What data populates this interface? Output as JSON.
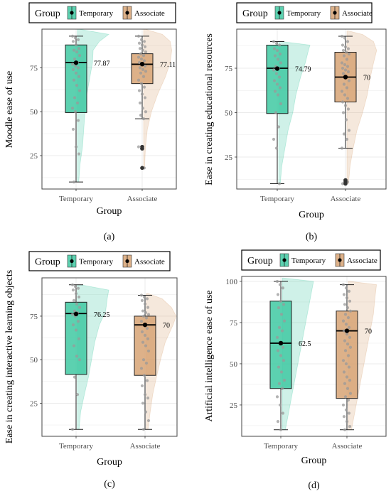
{
  "colors": {
    "temporary": "#40c9a2",
    "associate": "#d7a374",
    "point": "#9a9a9a",
    "mean": "#000000",
    "panel_border": "#444444",
    "grid": "#ebebeb"
  },
  "legend": {
    "title": "Group",
    "items": [
      "Temporary",
      "Associate"
    ]
  },
  "xlabel": "Group",
  "chart_data": [
    {
      "type": "raincloud-boxplot",
      "caption": "(a)",
      "ylabel": "Moodle ease of use",
      "xlabel": "Group",
      "categories": [
        "Temporary",
        "Associate"
      ],
      "ylim": [
        6,
        97
      ],
      "yticks": [
        25,
        50,
        75
      ],
      "ylabels": [
        "25",
        "50",
        "75"
      ],
      "grid": true,
      "legend_position": "top",
      "series": [
        {
          "name": "Temporary",
          "box": {
            "min": 10,
            "q1": 49.5,
            "median": 78,
            "q3": 88,
            "max": 93
          },
          "mean": 77.87,
          "mean_label": "77.87",
          "outliers": [],
          "points": [
            93,
            92,
            91,
            90,
            88,
            86,
            85,
            84,
            82,
            80,
            78,
            77,
            76,
            75,
            74,
            72,
            70,
            68,
            65,
            62,
            58,
            55,
            52,
            50,
            45,
            40,
            30,
            26,
            10
          ],
          "density": [
            [
              10,
              0.04
            ],
            [
              20,
              0.08
            ],
            [
              30,
              0.16
            ],
            [
              40,
              0.2
            ],
            [
              50,
              0.24
            ],
            [
              60,
              0.3
            ],
            [
              70,
              0.4
            ],
            [
              78,
              0.48
            ],
            [
              85,
              0.5
            ],
            [
              90,
              0.7
            ],
            [
              94,
              1.0
            ],
            [
              97,
              0.05
            ]
          ]
        },
        {
          "name": "Associate",
          "box": {
            "min": 46,
            "q1": 66,
            "median": 77,
            "q3": 83,
            "max": 93
          },
          "mean": 77.11,
          "mean_label": "77.11",
          "outliers": [
            30,
            29,
            18
          ],
          "points": [
            93,
            91,
            90,
            89,
            88,
            87,
            86,
            85,
            84,
            83,
            82,
            81,
            80,
            79,
            78,
            77,
            76,
            75,
            74,
            73,
            72,
            70,
            68,
            66,
            64,
            62,
            60,
            58,
            55,
            52,
            50,
            48,
            46,
            30,
            29,
            18
          ],
          "density": [
            [
              18,
              0.03
            ],
            [
              30,
              0.06
            ],
            [
              40,
              0.12
            ],
            [
              50,
              0.25
            ],
            [
              60,
              0.45
            ],
            [
              70,
              0.7
            ],
            [
              78,
              0.85
            ],
            [
              85,
              0.9
            ],
            [
              90,
              0.85
            ],
            [
              94,
              0.6
            ],
            [
              97,
              0.05
            ]
          ]
        }
      ]
    },
    {
      "type": "raincloud-boxplot",
      "caption": "(b)",
      "ylabel": "Ease in creating educational resources",
      "xlabel": "Group",
      "categories": [
        "Temporary",
        "Associate"
      ],
      "ylim": [
        7,
        97
      ],
      "yticks": [
        25,
        50,
        75
      ],
      "ylabels": [
        "25",
        "50",
        "75"
      ],
      "grid": true,
      "legend_position": "top",
      "series": [
        {
          "name": "Temporary",
          "box": {
            "min": 10,
            "q1": 49.5,
            "median": 75,
            "q3": 88,
            "max": 90
          },
          "mean": 74.79,
          "mean_label": "74.79",
          "outliers": [],
          "points": [
            90,
            89,
            88,
            86,
            85,
            83,
            82,
            80,
            78,
            76,
            75,
            74,
            72,
            70,
            68,
            66,
            64,
            62,
            60,
            55,
            50,
            42,
            35,
            30,
            10
          ],
          "density": [
            [
              10,
              0.05
            ],
            [
              20,
              0.1
            ],
            [
              30,
              0.2
            ],
            [
              40,
              0.3
            ],
            [
              50,
              0.45
            ],
            [
              60,
              0.55
            ],
            [
              70,
              0.7
            ],
            [
              78,
              0.85
            ],
            [
              85,
              0.95
            ],
            [
              88,
              1.0
            ],
            [
              90,
              0.1
            ]
          ]
        },
        {
          "name": "Associate",
          "box": {
            "min": 30,
            "q1": 56,
            "median": 70,
            "q3": 84,
            "max": 93
          },
          "mean": 70,
          "mean_label": "70",
          "outliers": [
            12,
            11,
            10
          ],
          "points": [
            93,
            92,
            90,
            88,
            87,
            86,
            85,
            84,
            83,
            82,
            80,
            78,
            77,
            76,
            75,
            74,
            73,
            72,
            70,
            68,
            66,
            64,
            62,
            60,
            58,
            56,
            54,
            52,
            50,
            46,
            40,
            38,
            35,
            30,
            12,
            11,
            10
          ],
          "density": [
            [
              10,
              0.05
            ],
            [
              20,
              0.1
            ],
            [
              30,
              0.2
            ],
            [
              40,
              0.32
            ],
            [
              50,
              0.5
            ],
            [
              60,
              0.65
            ],
            [
              70,
              0.75
            ],
            [
              78,
              0.85
            ],
            [
              85,
              0.95
            ],
            [
              90,
              0.85
            ],
            [
              94,
              0.5
            ],
            [
              96,
              0.05
            ]
          ]
        }
      ]
    },
    {
      "type": "raincloud-boxplot",
      "caption": "(c)",
      "ylabel": "Ease in creating interactive learning objects",
      "xlabel": "Group",
      "categories": [
        "Temporary",
        "Associate"
      ],
      "ylim": [
        6,
        97
      ],
      "yticks": [
        25,
        50,
        75
      ],
      "ylabels": [
        "25",
        "50",
        "75"
      ],
      "grid": true,
      "legend_position": "top",
      "series": [
        {
          "name": "Temporary",
          "box": {
            "min": 10,
            "q1": 41.5,
            "median": 76.5,
            "q3": 83,
            "max": 93
          },
          "mean": 76.25,
          "mean_label": "76.25",
          "outliers": [],
          "points": [
            93,
            92,
            91,
            90,
            88,
            86,
            84,
            82,
            80,
            78,
            77,
            76,
            75,
            72,
            70,
            67,
            62,
            58,
            52,
            50,
            40,
            30,
            10
          ],
          "density": [
            [
              10,
              0.05
            ],
            [
              20,
              0.1
            ],
            [
              30,
              0.22
            ],
            [
              40,
              0.35
            ],
            [
              50,
              0.45
            ],
            [
              60,
              0.55
            ],
            [
              70,
              0.7
            ],
            [
              78,
              0.9
            ],
            [
              85,
              0.95
            ],
            [
              90,
              1.0
            ],
            [
              93,
              0.1
            ]
          ]
        },
        {
          "name": "Associate",
          "box": {
            "min": 10,
            "q1": 41,
            "median": 70,
            "q3": 75,
            "max": 87
          },
          "mean": 70,
          "mean_label": "70",
          "outliers": [],
          "points": [
            87,
            86,
            85,
            84,
            82,
            80,
            78,
            77,
            76,
            75,
            74,
            72,
            70,
            68,
            66,
            64,
            62,
            60,
            58,
            55,
            50,
            48,
            45,
            41,
            38,
            35,
            30,
            28,
            25,
            20,
            15,
            10
          ],
          "density": [
            [
              10,
              0.05
            ],
            [
              20,
              0.12
            ],
            [
              30,
              0.2
            ],
            [
              40,
              0.32
            ],
            [
              50,
              0.45
            ],
            [
              60,
              0.6
            ],
            [
              70,
              0.85
            ],
            [
              75,
              0.95
            ],
            [
              80,
              0.8
            ],
            [
              85,
              0.5
            ],
            [
              88,
              0.05
            ]
          ]
        }
      ]
    },
    {
      "type": "raincloud-boxplot",
      "caption": "(d)",
      "ylabel": "Artificial intelligence ease of use",
      "xlabel": "Group",
      "categories": [
        "Temporary",
        "Associate"
      ],
      "ylim": [
        6,
        103
      ],
      "yticks": [
        25,
        50,
        75,
        100
      ],
      "ylabels": [
        "25",
        "50",
        "75",
        "100"
      ],
      "grid": true,
      "legend_position": "top",
      "series": [
        {
          "name": "Temporary",
          "box": {
            "min": 10,
            "q1": 35,
            "median": 62.5,
            "q3": 88,
            "max": 100
          },
          "mean": 62.5,
          "mean_label": "62.5",
          "outliers": [],
          "points": [
            100,
            98,
            96,
            92,
            88,
            86,
            84,
            80,
            76,
            72,
            70,
            66,
            62,
            60,
            58,
            55,
            52,
            48,
            45,
            40,
            38,
            35,
            30,
            25,
            20,
            15,
            10
          ],
          "density": [
            [
              10,
              0.1
            ],
            [
              20,
              0.2
            ],
            [
              30,
              0.3
            ],
            [
              40,
              0.4
            ],
            [
              50,
              0.5
            ],
            [
              60,
              0.6
            ],
            [
              70,
              0.7
            ],
            [
              80,
              0.8
            ],
            [
              90,
              0.9
            ],
            [
              100,
              1.0
            ],
            [
              102,
              0.05
            ]
          ]
        },
        {
          "name": "Associate",
          "box": {
            "min": 10,
            "q1": 29,
            "median": 70,
            "q3": 82,
            "max": 98
          },
          "mean": 70,
          "mean_label": "70",
          "outliers": [],
          "points": [
            98,
            96,
            94,
            92,
            90,
            88,
            86,
            84,
            82,
            80,
            78,
            76,
            74,
            72,
            70,
            68,
            66,
            64,
            62,
            60,
            58,
            55,
            52,
            50,
            48,
            45,
            42,
            40,
            38,
            35,
            32,
            30,
            28,
            25,
            22,
            20,
            18,
            15,
            12,
            10
          ],
          "density": [
            [
              10,
              0.1
            ],
            [
              20,
              0.2
            ],
            [
              30,
              0.3
            ],
            [
              40,
              0.4
            ],
            [
              50,
              0.5
            ],
            [
              60,
              0.6
            ],
            [
              70,
              0.7
            ],
            [
              80,
              0.8
            ],
            [
              90,
              0.85
            ],
            [
              98,
              0.9
            ],
            [
              100,
              0.05
            ]
          ]
        }
      ]
    }
  ]
}
